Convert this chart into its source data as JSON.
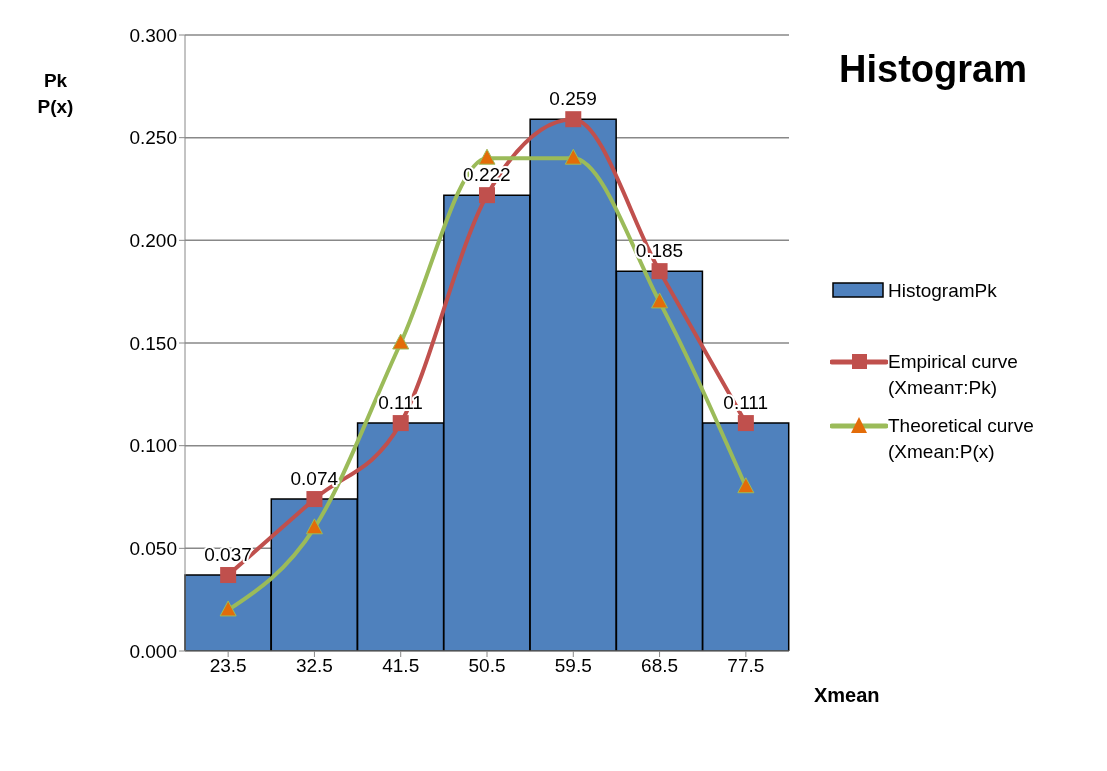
{
  "chart_data": {
    "type": "bar",
    "title": "Histogram",
    "xlabel": "Xmean",
    "ylabel": "Pk P(x)",
    "categories": [
      "23.5",
      "32.5",
      "41.5",
      "50.5",
      "59.5",
      "68.5",
      "77.5"
    ],
    "series": [
      {
        "name": "HistogramPk",
        "color": "#4f81bd",
        "values": [
          0.037,
          0.074,
          0.111,
          0.222,
          0.259,
          0.185,
          0.111
        ],
        "value_labels": [
          "0.037",
          "0.074",
          "0.111",
          "0.222",
          "0.259",
          "0.185",
          "0.111"
        ]
      },
      {
        "name": "Empirical curve (Xmeanт:Pk)",
        "type": "line",
        "color": "#c0504d",
        "marker": "square",
        "values": [
          0.037,
          0.074,
          0.111,
          0.222,
          0.259,
          0.185,
          0.111
        ]
      },
      {
        "name": "Theoretical curve (Xmean:P(x)",
        "type": "line",
        "color": "#9bbb59",
        "marker": "triangle",
        "values": [
          0.02,
          0.06,
          0.15,
          0.24,
          0.24,
          0.17,
          0.08
        ]
      }
    ],
    "ylim": [
      0,
      0.3
    ],
    "yticks": [
      {
        "value": 0,
        "label": "0.000"
      },
      {
        "value": 0.05,
        "label": "0.050"
      },
      {
        "value": 0.1,
        "label": "0.100"
      },
      {
        "value": 0.15,
        "label": "0.150"
      },
      {
        "value": 0.2,
        "label": "0.200"
      },
      {
        "value": 0.25,
        "label": "0.250"
      },
      {
        "value": 0.3,
        "label": "0.300"
      }
    ],
    "grid": "y",
    "legend": "right"
  }
}
